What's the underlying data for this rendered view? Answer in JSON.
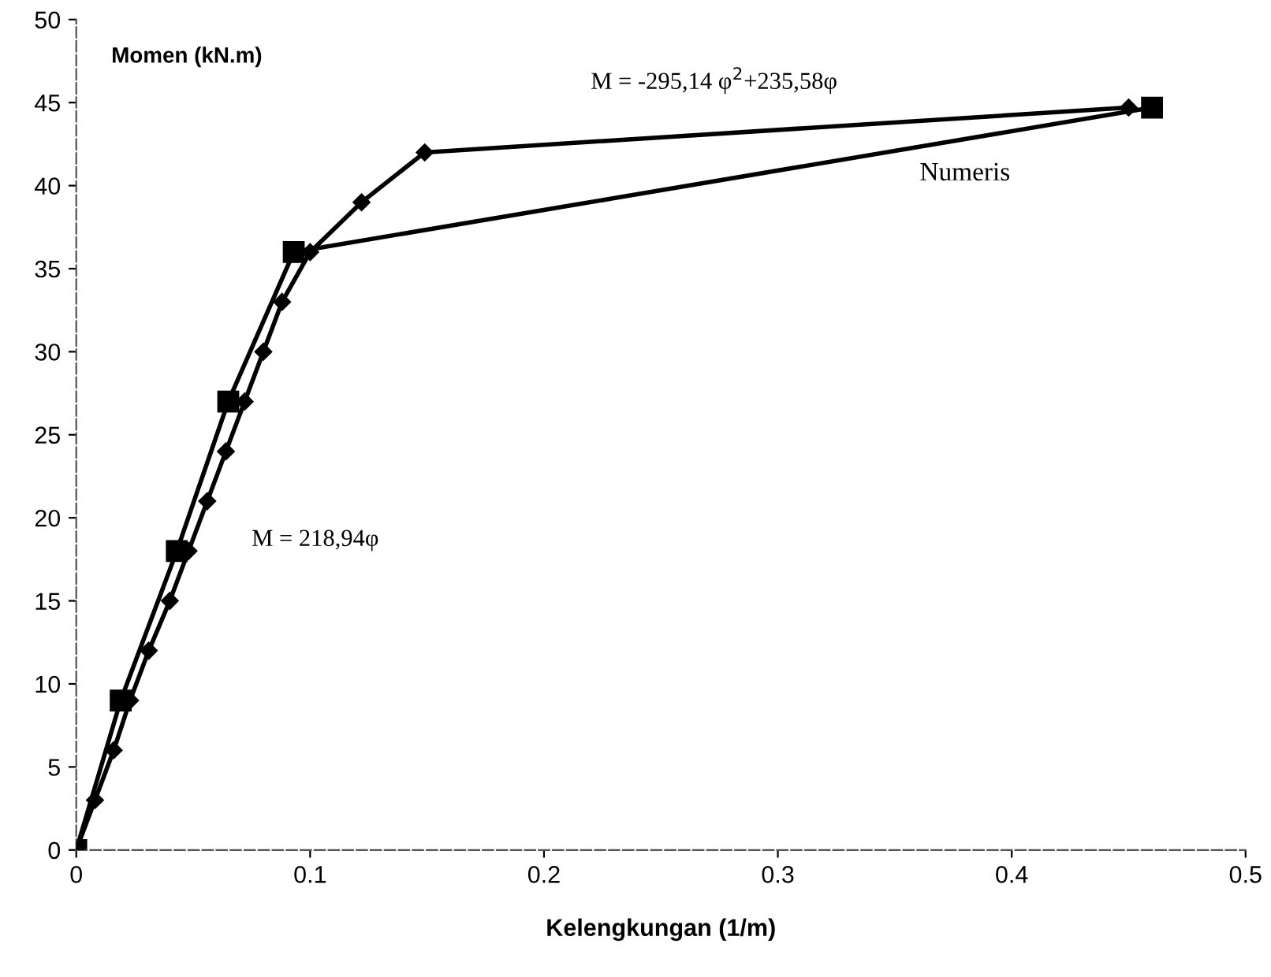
{
  "chart_data": {
    "type": "line",
    "xlabel": "Kelengkungan (1/m)",
    "ylabel": "Momen (kN.m)",
    "xlim": [
      0,
      0.5
    ],
    "ylim": [
      0,
      50
    ],
    "xticks": [
      0,
      0.1,
      0.2,
      0.3,
      0.4,
      0.5
    ],
    "yticks": [
      0,
      5,
      10,
      15,
      20,
      25,
      30,
      35,
      40,
      45,
      50
    ],
    "grid": false,
    "legend": false,
    "line_style": "solid",
    "series": [
      {
        "color": "#000000",
        "marker": "square",
        "x": [
          0,
          0.019,
          0.043,
          0.065,
          0.093,
          0.46
        ],
        "values": [
          0,
          9,
          18,
          27,
          36,
          44.7
        ]
      },
      {
        "name": "Numeris",
        "color": "#000000",
        "marker": "diamond",
        "x": [
          0,
          0.008,
          0.016,
          0.023,
          0.031,
          0.04,
          0.048,
          0.056,
          0.064,
          0.072,
          0.08,
          0.088,
          0.1,
          0.122,
          0.149,
          0.45
        ],
        "values": [
          0,
          3,
          6,
          9,
          12,
          15,
          18,
          21,
          24,
          27,
          30,
          33,
          36,
          39,
          42,
          44.7
        ]
      }
    ],
    "annotations": [
      "M = -295,14 φ$^{2}$+235,58φ",
      "M = 218,94φ"
    ]
  }
}
